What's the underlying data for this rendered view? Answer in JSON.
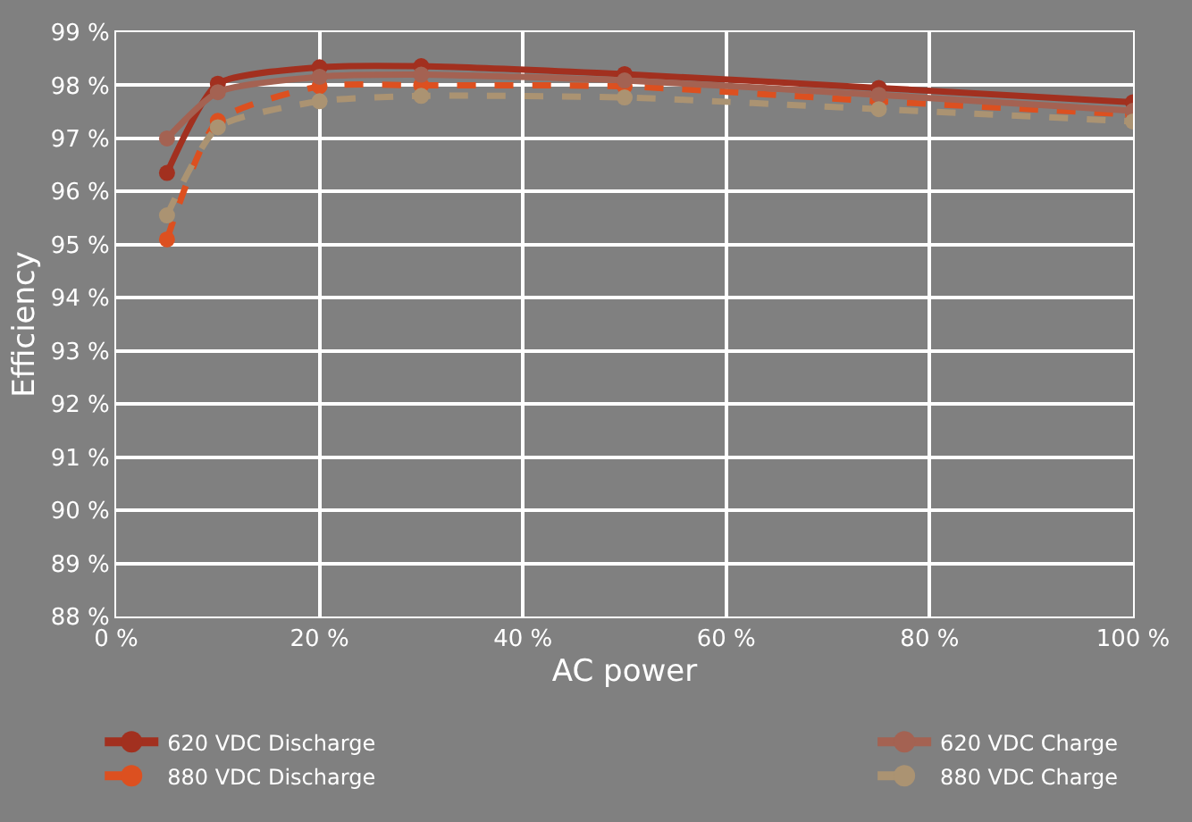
{
  "chart_data": {
    "type": "line",
    "xlabel": "AC power",
    "ylabel": "Efficiency",
    "x": [
      5,
      10,
      20,
      30,
      50,
      75,
      100
    ],
    "series": [
      {
        "name": "620 VDC Discharge",
        "color": "#a2301f",
        "line_style": "solid",
        "values": [
          96.35,
          98.03,
          98.34,
          98.36,
          98.21,
          97.95,
          97.68
        ]
      },
      {
        "name": "880 VDC Discharge",
        "color": "#dc5020",
        "line_style": "dashed",
        "values": [
          95.1,
          97.33,
          97.98,
          98.0,
          97.98,
          97.7,
          97.45
        ]
      },
      {
        "name": "620 VDC Charge",
        "color": "#a46252",
        "line_style": "solid",
        "values": [
          97.0,
          97.87,
          98.16,
          98.2,
          98.09,
          97.82,
          97.52
        ]
      },
      {
        "name": "880 VDC Charge",
        "color": "#ab9372",
        "line_style": "dashed",
        "values": [
          95.55,
          97.21,
          97.7,
          97.8,
          97.77,
          97.55,
          97.32
        ]
      }
    ],
    "xlim": [
      0,
      100
    ],
    "xticks": [
      {
        "value": 0,
        "label": "0 %"
      },
      {
        "value": 20,
        "label": "20 %"
      },
      {
        "value": 40,
        "label": "40 %"
      },
      {
        "value": 60,
        "label": "60 %"
      },
      {
        "value": 80,
        "label": "80 %"
      },
      {
        "value": 100,
        "label": "100 %"
      }
    ],
    "ylim": [
      88,
      99
    ],
    "yticks": [
      {
        "value": 88,
        "label": "88 %"
      },
      {
        "value": 89,
        "label": "89 %"
      },
      {
        "value": 90,
        "label": "90 %"
      },
      {
        "value": 91,
        "label": "91 %"
      },
      {
        "value": 92,
        "label": "92 %"
      },
      {
        "value": 93,
        "label": "93 %"
      },
      {
        "value": 94,
        "label": "94 %"
      },
      {
        "value": 95,
        "label": "95 %"
      },
      {
        "value": 96,
        "label": "96 %"
      },
      {
        "value": 97,
        "label": "97 %"
      },
      {
        "value": 98,
        "label": "98 %"
      },
      {
        "value": 99,
        "label": "99 %"
      }
    ],
    "grid": true,
    "legend": "bottom",
    "marker": "circle"
  }
}
